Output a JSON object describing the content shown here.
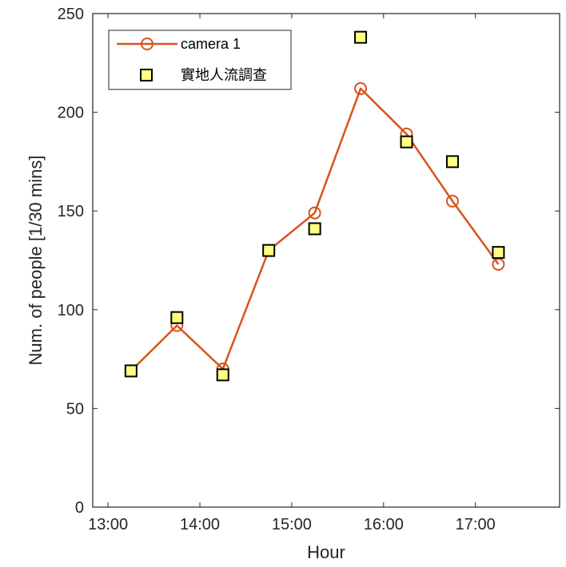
{
  "chart_data": {
    "type": "line",
    "xlabel": "Hour",
    "ylabel": "Num. of people [1/30 mins]",
    "xlim": [
      "12:50",
      "17:55"
    ],
    "ylim": [
      0,
      250
    ],
    "xticks": [
      "13:00",
      "14:00",
      "15:00",
      "16:00",
      "17:00"
    ],
    "yticks": [
      0,
      50,
      100,
      150,
      200,
      250
    ],
    "grid": false,
    "legend_position": "top-left",
    "series": [
      {
        "name": "camera 1",
        "style": "line-circle",
        "color": "#D95319",
        "points": [
          {
            "x": "13:15",
            "y": 69
          },
          {
            "x": "13:45",
            "y": 92
          },
          {
            "x": "14:15",
            "y": 70
          },
          {
            "x": "14:45",
            "y": 130
          },
          {
            "x": "15:15",
            "y": 149
          },
          {
            "x": "15:45",
            "y": 212
          },
          {
            "x": "16:15",
            "y": 189
          },
          {
            "x": "16:45",
            "y": 155
          },
          {
            "x": "17:15",
            "y": 123
          }
        ]
      },
      {
        "name": "實地人流調查",
        "style": "square-marker",
        "color": "#FFFF80",
        "edge_color": "#000000",
        "points": [
          {
            "x": "13:15",
            "y": 69
          },
          {
            "x": "13:45",
            "y": 96
          },
          {
            "x": "14:15",
            "y": 67
          },
          {
            "x": "14:45",
            "y": 130
          },
          {
            "x": "15:15",
            "y": 141
          },
          {
            "x": "15:45",
            "y": 238
          },
          {
            "x": "16:15",
            "y": 185
          },
          {
            "x": "16:45",
            "y": 175
          },
          {
            "x": "17:15",
            "y": 129
          }
        ]
      }
    ]
  }
}
